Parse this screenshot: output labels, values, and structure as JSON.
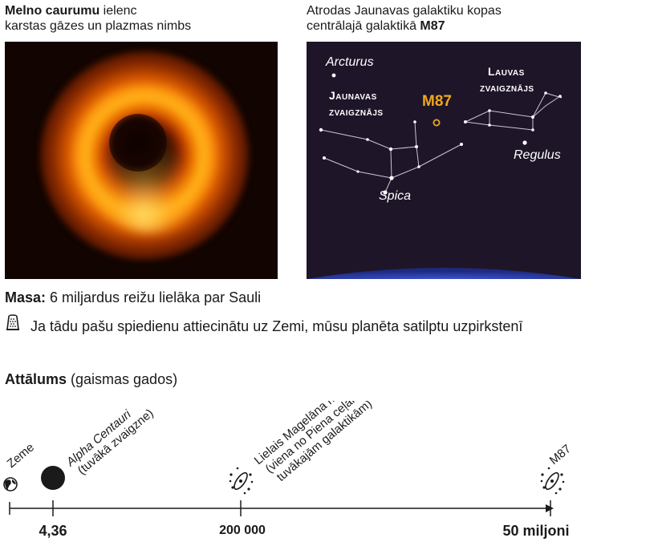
{
  "black_hole": {
    "caption_bold": "Melno caurumu",
    "caption_rest": " ielenc",
    "caption_line2": "karstas gāzes un plazmas nimbs"
  },
  "sky_map": {
    "caption_line1": "Atrodas Jaunavas galaktiku kopas",
    "caption_line2": "centrālajā galaktikā ",
    "caption_bold": "M87",
    "labels": {
      "arcturus": "Arcturus",
      "virgo_1": "Jaunavas",
      "virgo_2": "zvaigznājs",
      "m87": "M87",
      "leo_1": "Lauvas",
      "leo_2": "zvaigznājs",
      "regulus": "Regulus",
      "spica": "Spica"
    },
    "colors": {
      "background": "#1e1528",
      "m87": "#f0a81c",
      "lines": "#c9c6d6",
      "horizon": "#2a3fae"
    }
  },
  "mass": {
    "label": "Masa:",
    "text": " 6 miljardus reižu lielāka par Sauli"
  },
  "pressure_note": {
    "icon": "thimble-icon",
    "text": "Ja tādu pašu spiedienu attiecinātu uz Zemi, mūsu planēta satilptu uzpirkstenī"
  },
  "distance": {
    "title_bold": "Attālums",
    "title_rest": " (gaismas gados)",
    "objects": {
      "earth": "Zeme",
      "alpha_1": "Alpha Centauri",
      "alpha_2": "(tuvākā zvaigzne)",
      "lmc_1": "Lielais Magelāna mākonis",
      "lmc_2": "(viena no Piena ceļam",
      "lmc_3": "tuvākajām galaktikām)",
      "m87": "M87"
    },
    "ticks": {
      "alpha": "4,36",
      "lmc": "200 000",
      "m87": "50 miljoni"
    }
  }
}
